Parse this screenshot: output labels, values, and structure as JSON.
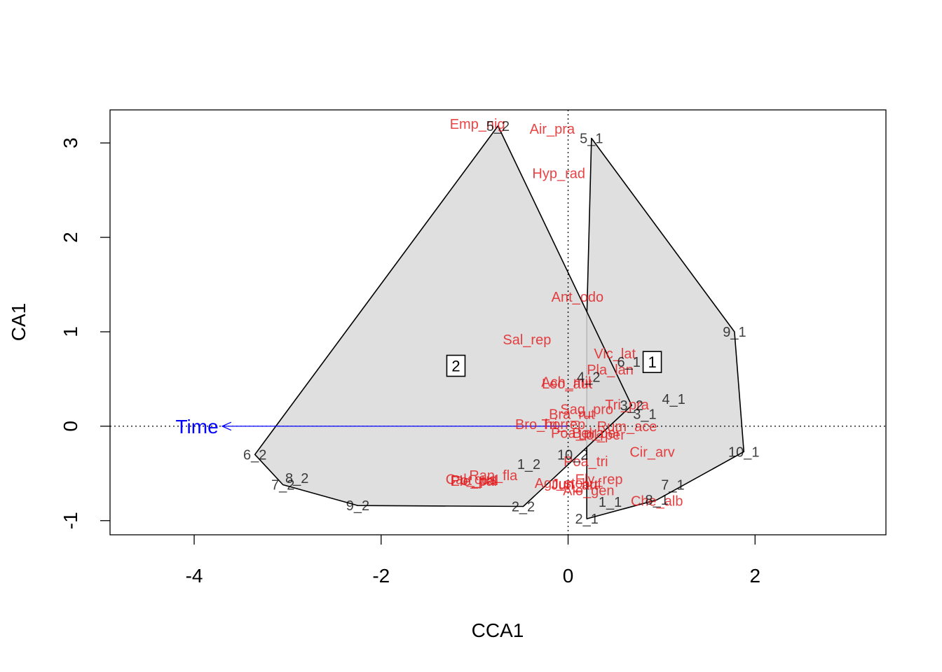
{
  "chart_data": {
    "type": "scatter",
    "subtype": "cca ordination biplot with hulls",
    "title": "",
    "xlabel": "CCA1",
    "ylabel": "CA1",
    "xlim": [
      -4.9,
      3.4
    ],
    "ylim": [
      -1.15,
      3.35
    ],
    "xticks": [
      -4,
      -2,
      0,
      2
    ],
    "yticks": [
      -1,
      0,
      1,
      2,
      3
    ],
    "x_tick_labels": [
      "-4",
      "-2",
      "0",
      "2"
    ],
    "y_tick_labels": [
      "-1",
      "0",
      "1",
      "2",
      "3"
    ],
    "grid": false,
    "reference_lines": {
      "x": 0,
      "y": 0,
      "style": "dotted"
    },
    "colors": {
      "species": "#e31a1c",
      "sites": "#000000",
      "env_vector": "#0000ff",
      "hull_fill": "#d9d9d9",
      "hull_stroke": "#000000"
    },
    "hulls": [
      {
        "label": "1",
        "centroid": [
          0.9,
          0.68
        ],
        "vertices": [
          [
            0.25,
            3.05
          ],
          [
            1.78,
            1.0
          ],
          [
            1.88,
            -0.27
          ],
          [
            0.95,
            -0.78
          ],
          [
            0.2,
            -0.98
          ],
          [
            0.2,
            1.15
          ]
        ]
      },
      {
        "label": "2",
        "centroid": [
          -1.2,
          0.64
        ],
        "vertices": [
          [
            -0.75,
            3.18
          ],
          [
            0.68,
            0.22
          ],
          [
            -0.48,
            -0.85
          ],
          [
            -2.25,
            -0.84
          ],
          [
            -3.05,
            -0.62
          ],
          [
            -3.35,
            -0.3
          ]
        ]
      }
    ],
    "sites": [
      {
        "label": "5_2",
        "x": -0.75,
        "y": 3.18
      },
      {
        "label": "5_1",
        "x": 0.25,
        "y": 3.05
      },
      {
        "label": "9_1",
        "x": 1.78,
        "y": 1.0
      },
      {
        "label": "6_1",
        "x": 0.65,
        "y": 0.68
      },
      {
        "label": "4_2",
        "x": 0.22,
        "y": 0.52
      },
      {
        "label": "3_2",
        "x": 0.68,
        "y": 0.22
      },
      {
        "label": "4_1",
        "x": 1.13,
        "y": 0.29
      },
      {
        "label": "3_1",
        "x": 0.82,
        "y": 0.13
      },
      {
        "label": "10_1",
        "x": 1.88,
        "y": -0.27
      },
      {
        "label": "10_2",
        "x": 0.05,
        "y": -0.3
      },
      {
        "label": "1_2",
        "x": -0.42,
        "y": -0.4
      },
      {
        "label": "6_2",
        "x": -3.35,
        "y": -0.3
      },
      {
        "label": "8_2",
        "x": -2.9,
        "y": -0.55
      },
      {
        "label": "7_2",
        "x": -3.05,
        "y": -0.62
      },
      {
        "label": "9_2",
        "x": -2.25,
        "y": -0.84
      },
      {
        "label": "2_2",
        "x": -0.48,
        "y": -0.85
      },
      {
        "label": "7_1",
        "x": 1.12,
        "y": -0.62
      },
      {
        "label": "1_1",
        "x": 0.45,
        "y": -0.8
      },
      {
        "label": "8_1",
        "x": 0.95,
        "y": -0.78
      },
      {
        "label": "2_1",
        "x": 0.2,
        "y": -0.98
      }
    ],
    "species": [
      {
        "label": "Emp_nig",
        "x": -0.97,
        "y": 3.2
      },
      {
        "label": "Air_pra",
        "x": -0.17,
        "y": 3.15
      },
      {
        "label": "Hyp_rad",
        "x": -0.1,
        "y": 2.68
      },
      {
        "label": "Ant_odo",
        "x": 0.1,
        "y": 1.37
      },
      {
        "label": "Sal_rep",
        "x": -0.44,
        "y": 0.92
      },
      {
        "label": "Vic_lat",
        "x": 0.5,
        "y": 0.77
      },
      {
        "label": "Pla_lan",
        "x": 0.45,
        "y": 0.6
      },
      {
        "label": "Ach_mil",
        "x": -0.02,
        "y": 0.47
      },
      {
        "label": "Leo_aut",
        "x": -0.01,
        "y": 0.45
      },
      {
        "label": "Tri_pra",
        "x": 0.63,
        "y": 0.23
      },
      {
        "label": "Sag_pro",
        "x": 0.2,
        "y": 0.18
      },
      {
        "label": "Bra_rut",
        "x": 0.04,
        "y": 0.13
      },
      {
        "label": "Rum_ace",
        "x": 0.63,
        "y": 0.0
      },
      {
        "label": "Bro_hor",
        "x": -0.3,
        "y": 0.02
      },
      {
        "label": "Tri_rep",
        "x": -0.05,
        "y": 0.02
      },
      {
        "label": "Poa_pra",
        "x": 0.1,
        "y": -0.07
      },
      {
        "label": "Bel_per",
        "x": 0.3,
        "y": -0.07
      },
      {
        "label": "Lol_per",
        "x": 0.36,
        "y": -0.09
      },
      {
        "label": "Cir_arv",
        "x": 0.9,
        "y": -0.27
      },
      {
        "label": "Poa_tri",
        "x": 0.19,
        "y": -0.37
      },
      {
        "label": "Ran_fla",
        "x": -0.8,
        "y": -0.52
      },
      {
        "label": "Pot_pal",
        "x": -1.0,
        "y": -0.57
      },
      {
        "label": "Cal_cus",
        "x": -1.04,
        "y": -0.56
      },
      {
        "label": "Ele_pal",
        "x": -1.01,
        "y": -0.58
      },
      {
        "label": "Agr_sto",
        "x": -0.1,
        "y": -0.6
      },
      {
        "label": "Ely_rep",
        "x": 0.33,
        "y": -0.56
      },
      {
        "label": "Jun_buf",
        "x": 0.09,
        "y": -0.61
      },
      {
        "label": "Jun_art",
        "x": 0.07,
        "y": -0.62
      },
      {
        "label": "Alo_gen",
        "x": 0.22,
        "y": -0.68
      },
      {
        "label": "Che_alb",
        "x": 0.95,
        "y": -0.79
      }
    ],
    "env_vectors": [
      {
        "label": "Time",
        "x": -3.7,
        "y": 0.0
      }
    ]
  }
}
